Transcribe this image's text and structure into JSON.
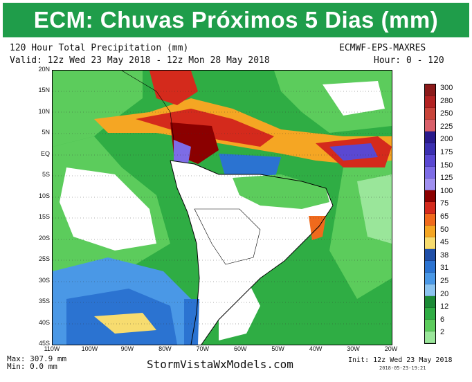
{
  "banner": {
    "title": "ECM: Chuvas Próximos 5 Dias (mm)"
  },
  "header": {
    "line1_left": "120 Hour Total Precipitation (mm)",
    "line1_right": "ECMWF-EPS-MAXRES",
    "line2_left": "Valid: 12z Wed 23 May 2018 - 12z Mon 28 May 2018",
    "line2_right": "Hour: 0 - 120"
  },
  "map": {
    "lat_labels": [
      "20N",
      "15N",
      "10N",
      "5N",
      "EQ",
      "5S",
      "10S",
      "15S",
      "20S",
      "25S",
      "30S",
      "35S",
      "40S",
      "45S"
    ],
    "lon_labels": [
      "110W",
      "100W",
      "90W",
      "80W",
      "70W",
      "60W",
      "50W",
      "40W",
      "30W",
      "20W"
    ],
    "land_color": "#ffffff",
    "boundary_color": "#000000"
  },
  "colorbar": {
    "labels": [
      "300",
      "280",
      "250",
      "225",
      "200",
      "175",
      "150",
      "125",
      "100",
      "75",
      "65",
      "50",
      "45",
      "38",
      "31",
      "25",
      "20",
      "12",
      "6",
      "2"
    ],
    "colors": [
      "#8b1a1a",
      "#b22222",
      "#c8443a",
      "#d9606a",
      "#2a1a8c",
      "#3b2fb0",
      "#5a48d2",
      "#7d6ce6",
      "#a090f0",
      "#8b0000",
      "#d42a1c",
      "#f06a1c",
      "#f5a623",
      "#f7dc6f",
      "#1f4fa8",
      "#2b73d1",
      "#4a98e6",
      "#8cc4f0",
      "#1b8a36",
      "#2fad44",
      "#5ccc5c",
      "#9ae69a"
    ]
  },
  "footer": {
    "max": "Max: 307.9 mm",
    "min": "Min: 0.0 mm",
    "site": "StormVistaWxModels.com",
    "init": "Init: 12z Wed 23 May 2018",
    "stamp": "2018-05-23-19:21"
  }
}
